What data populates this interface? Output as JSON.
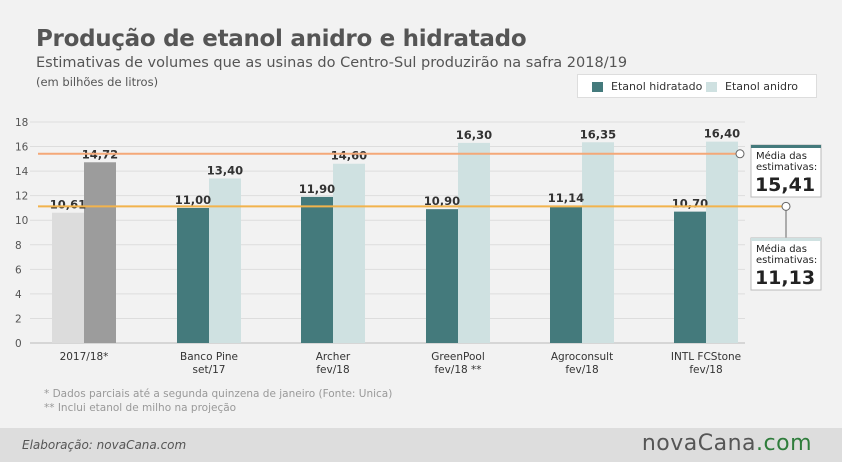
{
  "title": "Produção de etanol anidro e hidratado",
  "subtitle": "Estimativas de volumes que as usinas do Centro-Sul produzirão na safra 2018/19",
  "unit_note": "(em bilhões de litros)",
  "legend": [
    {
      "label": "Etanol hidratado",
      "color": "#447a7c"
    },
    {
      "label": "Etanol anidro",
      "color": "#cfe1e1"
    }
  ],
  "chart_data": {
    "type": "bar",
    "ylim": [
      0,
      18
    ],
    "yticks": [
      "0",
      "2",
      "4",
      "6",
      "8",
      "10",
      "12",
      "14",
      "16",
      "18"
    ],
    "grid": true,
    "legend_position": "top-right",
    "categories": [
      {
        "line1": "2017/18*",
        "line2": ""
      },
      {
        "line1": "Banco Pine",
        "line2": "set/17"
      },
      {
        "line1": "Archer",
        "line2": "fev/18"
      },
      {
        "line1": "GreenPool",
        "line2": "fev/18 **"
      },
      {
        "line1": "Agroconsult",
        "line2": "fev/18"
      },
      {
        "line1": "INTL FCStone",
        "line2": "fev/18"
      }
    ],
    "series": [
      {
        "name": "Etanol hidratado",
        "values": [
          10.61,
          11.0,
          11.9,
          10.9,
          11.14,
          10.7
        ],
        "labels": [
          "10,61",
          "11,00",
          "11,90",
          "10,90",
          "11,14",
          "10,70"
        ]
      },
      {
        "name": "Etanol anidro",
        "values": [
          14.72,
          13.4,
          14.6,
          16.3,
          16.35,
          16.4
        ],
        "labels": [
          "14,72",
          "13,40",
          "14,60",
          "16,30",
          "16,35",
          "16,40"
        ]
      }
    ],
    "first_category_colors": {
      "hidratado": "#dcdcdc",
      "anidro": "#9c9c9c"
    },
    "series_colors": {
      "hidratado": "#447a7c",
      "anidro": "#cfe1e1"
    },
    "averages": [
      {
        "value": 15.41,
        "label_line1": "Média das",
        "label_line2": "estimativas:",
        "display": "15,41",
        "line_color": "#f4a878",
        "box_accent": "#447a7c"
      },
      {
        "value": 11.13,
        "label_line1": "Média das",
        "label_line2": "estimativas:",
        "display": "11,13",
        "line_color": "#f2b34c",
        "box_accent": "#cfe1e1"
      }
    ]
  },
  "footnotes": [
    "* Dados parciais até a segunda quinzena de janeiro (Fonte: Unica)",
    "** Inclui etanol de milho na projeção"
  ],
  "credit": "Elaboração: novaCana.com",
  "logo": {
    "main": "novaCana",
    "suffix": ".com"
  }
}
